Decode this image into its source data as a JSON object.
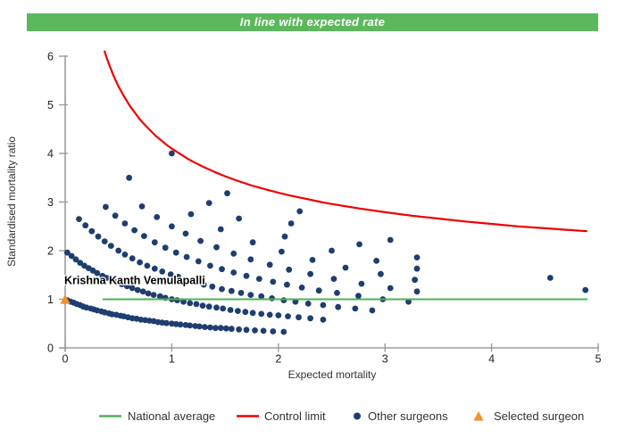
{
  "banner": {
    "text": "In line with expected rate",
    "background_color": "#5cb85c",
    "text_color": "#ffffff"
  },
  "axis_color": "#9d9d9d",
  "chart_data": {
    "type": "scatter",
    "title": "",
    "xlabel": "Expected mortality",
    "ylabel": "Standardised mortality ratio",
    "xlim": [
      0,
      5
    ],
    "ylim": [
      0,
      6
    ],
    "x_ticks": [
      0,
      1,
      2,
      3,
      4,
      5
    ],
    "y_ticks": [
      0,
      1,
      2,
      3,
      4,
      5,
      6
    ],
    "grid": false,
    "legend_position": "bottom",
    "series": {
      "national_average": {
        "label": "National average",
        "color": "#4db253",
        "type": "hline",
        "y": 1,
        "x_start": 0.35,
        "x_end": 4.9
      },
      "control_limit": {
        "label": "Control limit",
        "color": "#ee0000",
        "type": "line",
        "points": [
          [
            0.37,
            6.1
          ],
          [
            0.38,
            6.03
          ],
          [
            0.39,
            5.96
          ],
          [
            0.4,
            5.9
          ],
          [
            0.41,
            5.84
          ],
          [
            0.43,
            5.73
          ],
          [
            0.45,
            5.62
          ],
          [
            0.47,
            5.52
          ],
          [
            0.5,
            5.38
          ],
          [
            0.52,
            5.3
          ],
          [
            0.55,
            5.18
          ],
          [
            0.57,
            5.11
          ],
          [
            0.6,
            5.0
          ],
          [
            0.62,
            4.94
          ],
          [
            0.65,
            4.85
          ],
          [
            0.67,
            4.79
          ],
          [
            0.7,
            4.7
          ],
          [
            0.75,
            4.58
          ],
          [
            0.8,
            4.47
          ],
          [
            0.85,
            4.36
          ],
          [
            0.9,
            4.27
          ],
          [
            0.95,
            4.18
          ],
          [
            1.0,
            4.1
          ],
          [
            1.05,
            4.03
          ],
          [
            1.1,
            3.96
          ],
          [
            1.15,
            3.89
          ],
          [
            1.2,
            3.83
          ],
          [
            1.3,
            3.72
          ],
          [
            1.4,
            3.62
          ],
          [
            1.5,
            3.53
          ],
          [
            1.6,
            3.45
          ],
          [
            1.75,
            3.34
          ],
          [
            1.9,
            3.25
          ],
          [
            2.0,
            3.19
          ],
          [
            2.1,
            3.14
          ],
          [
            2.25,
            3.07
          ],
          [
            2.4,
            3.0
          ],
          [
            2.5,
            2.96
          ],
          [
            2.75,
            2.87
          ],
          [
            3.0,
            2.79
          ],
          [
            3.25,
            2.72
          ],
          [
            3.5,
            2.66
          ],
          [
            3.75,
            2.6
          ],
          [
            4.0,
            2.55
          ],
          [
            4.25,
            2.5
          ],
          [
            4.5,
            2.46
          ],
          [
            4.7,
            2.43
          ],
          [
            4.89,
            2.4
          ]
        ]
      },
      "other_surgeons": {
        "label": "Other surgeons",
        "color": "#1e3e70",
        "type": "scatter",
        "points": [
          [
            0.02,
            0.98
          ],
          [
            0.05,
            0.95
          ],
          [
            0.08,
            0.93
          ],
          [
            0.11,
            0.9
          ],
          [
            0.14,
            0.88
          ],
          [
            0.17,
            0.85
          ],
          [
            0.2,
            0.83
          ],
          [
            0.24,
            0.81
          ],
          [
            0.27,
            0.79
          ],
          [
            0.3,
            0.77
          ],
          [
            0.34,
            0.75
          ],
          [
            0.37,
            0.73
          ],
          [
            0.41,
            0.71
          ],
          [
            0.44,
            0.69
          ],
          [
            0.48,
            0.68
          ],
          [
            0.52,
            0.66
          ],
          [
            0.55,
            0.65
          ],
          [
            0.59,
            0.63
          ],
          [
            0.63,
            0.61
          ],
          [
            0.67,
            0.6
          ],
          [
            0.71,
            0.58
          ],
          [
            0.75,
            0.57
          ],
          [
            0.79,
            0.56
          ],
          [
            0.83,
            0.55
          ],
          [
            0.87,
            0.53
          ],
          [
            0.91,
            0.52
          ],
          [
            0.95,
            0.51
          ],
          [
            1.0,
            0.5
          ],
          [
            1.04,
            0.49
          ],
          [
            1.08,
            0.48
          ],
          [
            1.13,
            0.47
          ],
          [
            1.17,
            0.46
          ],
          [
            1.22,
            0.45
          ],
          [
            1.26,
            0.44
          ],
          [
            1.31,
            0.43
          ],
          [
            1.36,
            0.42
          ],
          [
            1.41,
            0.41
          ],
          [
            1.46,
            0.41
          ],
          [
            1.51,
            0.4
          ],
          [
            1.56,
            0.39
          ],
          [
            1.63,
            0.38
          ],
          [
            1.7,
            0.37
          ],
          [
            1.78,
            0.36
          ],
          [
            1.86,
            0.35
          ],
          [
            1.95,
            0.34
          ],
          [
            2.05,
            0.33
          ],
          [
            0.02,
            1.96
          ],
          [
            0.06,
            1.89
          ],
          [
            0.1,
            1.82
          ],
          [
            0.14,
            1.75
          ],
          [
            0.18,
            1.69
          ],
          [
            0.22,
            1.64
          ],
          [
            0.26,
            1.59
          ],
          [
            0.3,
            1.54
          ],
          [
            0.35,
            1.48
          ],
          [
            0.39,
            1.44
          ],
          [
            0.44,
            1.39
          ],
          [
            0.48,
            1.35
          ],
          [
            0.53,
            1.31
          ],
          [
            0.58,
            1.27
          ],
          [
            0.63,
            1.23
          ],
          [
            0.68,
            1.19
          ],
          [
            0.73,
            1.16
          ],
          [
            0.78,
            1.12
          ],
          [
            0.83,
            1.09
          ],
          [
            0.89,
            1.06
          ],
          [
            0.94,
            1.03
          ],
          [
            1.0,
            1.0
          ],
          [
            1.05,
            0.98
          ],
          [
            1.11,
            0.95
          ],
          [
            1.17,
            0.92
          ],
          [
            1.23,
            0.9
          ],
          [
            1.29,
            0.87
          ],
          [
            1.35,
            0.85
          ],
          [
            1.42,
            0.83
          ],
          [
            1.48,
            0.81
          ],
          [
            1.55,
            0.78
          ],
          [
            1.62,
            0.76
          ],
          [
            1.69,
            0.74
          ],
          [
            1.76,
            0.72
          ],
          [
            1.84,
            0.7
          ],
          [
            1.92,
            0.68
          ],
          [
            2.0,
            0.67
          ],
          [
            2.09,
            0.65
          ],
          [
            2.19,
            0.63
          ],
          [
            2.3,
            0.61
          ],
          [
            2.42,
            0.58
          ],
          [
            0.13,
            2.65
          ],
          [
            0.19,
            2.52
          ],
          [
            0.25,
            2.4
          ],
          [
            0.31,
            2.29
          ],
          [
            0.37,
            2.19
          ],
          [
            0.43,
            2.1
          ],
          [
            0.5,
            2.0
          ],
          [
            0.56,
            1.92
          ],
          [
            0.63,
            1.84
          ],
          [
            0.7,
            1.76
          ],
          [
            0.77,
            1.69
          ],
          [
            0.84,
            1.63
          ],
          [
            0.91,
            1.57
          ],
          [
            0.99,
            1.51
          ],
          [
            1.06,
            1.46
          ],
          [
            1.14,
            1.4
          ],
          [
            1.22,
            1.35
          ],
          [
            1.3,
            1.3
          ],
          [
            1.38,
            1.26
          ],
          [
            1.47,
            1.21
          ],
          [
            1.56,
            1.17
          ],
          [
            1.65,
            1.13
          ],
          [
            1.74,
            1.09
          ],
          [
            1.84,
            1.06
          ],
          [
            1.94,
            1.02
          ],
          [
            2.05,
            0.98
          ],
          [
            2.16,
            0.95
          ],
          [
            2.28,
            0.91
          ],
          [
            2.42,
            0.88
          ],
          [
            2.56,
            0.84
          ],
          [
            2.72,
            0.81
          ],
          [
            2.88,
            0.77
          ],
          [
            0.38,
            2.9
          ],
          [
            0.47,
            2.72
          ],
          [
            0.56,
            2.56
          ],
          [
            0.65,
            2.42
          ],
          [
            0.74,
            2.3
          ],
          [
            0.84,
            2.17
          ],
          [
            0.94,
            2.06
          ],
          [
            1.04,
            1.96
          ],
          [
            1.14,
            1.87
          ],
          [
            1.25,
            1.78
          ],
          [
            1.36,
            1.69
          ],
          [
            1.47,
            1.62
          ],
          [
            1.58,
            1.55
          ],
          [
            1.7,
            1.48
          ],
          [
            1.82,
            1.42
          ],
          [
            1.95,
            1.36
          ],
          [
            2.08,
            1.3
          ],
          [
            2.22,
            1.24
          ],
          [
            2.38,
            1.18
          ],
          [
            2.55,
            1.13
          ],
          [
            2.75,
            1.07
          ],
          [
            2.98,
            1.0
          ],
          [
            3.22,
            0.95
          ],
          [
            0.72,
            2.91
          ],
          [
            0.86,
            2.69
          ],
          [
            1.0,
            2.5
          ],
          [
            1.13,
            2.35
          ],
          [
            1.27,
            2.2
          ],
          [
            1.42,
            2.07
          ],
          [
            1.58,
            1.94
          ],
          [
            1.74,
            1.82
          ],
          [
            1.92,
            1.71
          ],
          [
            2.1,
            1.61
          ],
          [
            2.3,
            1.52
          ],
          [
            2.52,
            1.42
          ],
          [
            2.78,
            1.32
          ],
          [
            3.05,
            1.23
          ],
          [
            3.3,
            1.16
          ],
          [
            0.6,
            3.5
          ],
          [
            1.18,
            2.75
          ],
          [
            1.46,
            2.44
          ],
          [
            1.76,
            2.17
          ],
          [
            2.03,
            1.98
          ],
          [
            2.32,
            1.81
          ],
          [
            2.63,
            1.65
          ],
          [
            2.96,
            1.52
          ],
          [
            3.28,
            1.4
          ],
          [
            1.35,
            2.98
          ],
          [
            1.63,
            2.66
          ],
          [
            2.06,
            2.29
          ],
          [
            2.5,
            2.0
          ],
          [
            2.92,
            1.79
          ],
          [
            3.3,
            1.63
          ],
          [
            4.88,
            1.19
          ],
          [
            1.0,
            4.0
          ],
          [
            1.52,
            3.18
          ],
          [
            2.12,
            2.56
          ],
          [
            2.76,
            2.13
          ],
          [
            3.3,
            1.86
          ],
          [
            4.55,
            1.44
          ],
          [
            2.2,
            2.81
          ],
          [
            3.05,
            2.22
          ]
        ]
      },
      "selected_surgeon": {
        "label": "Selected surgeon",
        "color": "#f0922f",
        "type": "scatter",
        "name": "Krishna Kanth Vemulapalli",
        "point": [
          0,
          1
        ]
      }
    }
  }
}
